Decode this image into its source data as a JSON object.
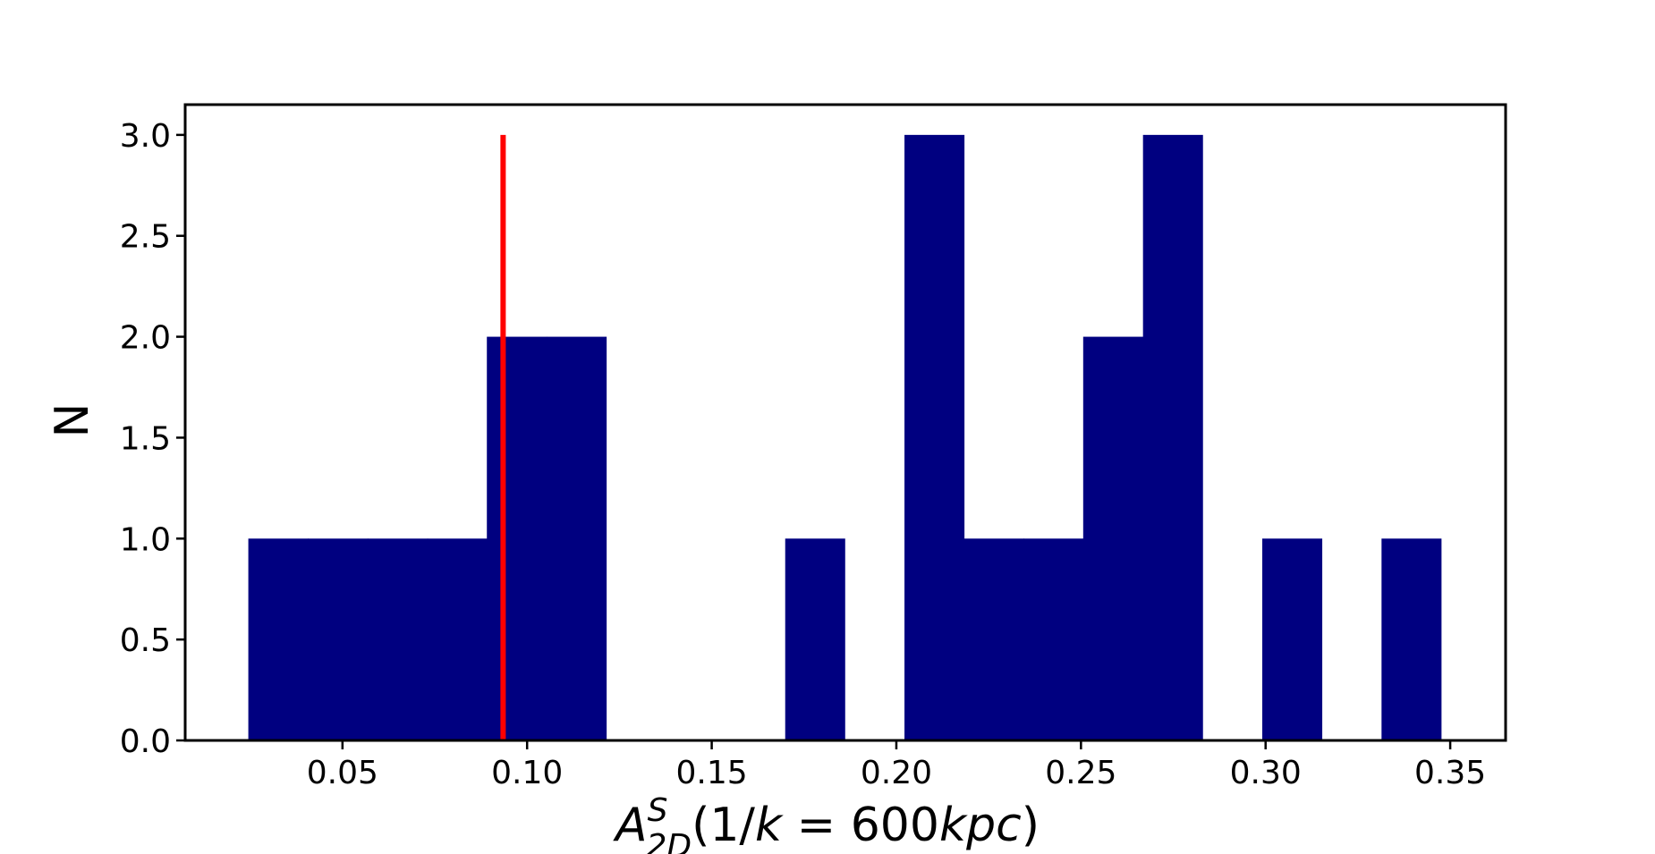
{
  "chart_data": {
    "type": "bar",
    "title": "",
    "xlabel": {
      "base": "A",
      "superscript": "S",
      "subscript": "2D",
      "suffix_open": "(1/",
      "suffix_k": "k",
      "suffix_eq": " = ",
      "suffix_num": "600",
      "suffix_unit": "kpc",
      "suffix_close": ")"
    },
    "ylabel": "N",
    "xlim": [
      0.0074,
      0.365
    ],
    "ylim": [
      0.0,
      3.15
    ],
    "bin_edges": [
      0.0245,
      0.0407,
      0.0568,
      0.073,
      0.0891,
      0.1053,
      0.1214,
      0.1376,
      0.1537,
      0.1699,
      0.186,
      0.2022,
      0.2183,
      0.2345,
      0.2506,
      0.2668,
      0.2829,
      0.2991,
      0.3152,
      0.3314,
      0.3475
    ],
    "values": [
      1,
      1,
      1,
      1,
      2,
      2,
      0,
      0,
      0,
      1,
      0,
      3,
      1,
      1,
      2,
      3,
      0,
      1,
      0,
      1
    ],
    "bar_color": "#000080",
    "xticks": [
      "0.05",
      "0.10",
      "0.15",
      "0.20",
      "0.25",
      "0.30",
      "0.35"
    ],
    "xtick_values": [
      0.05,
      0.1,
      0.15,
      0.2,
      0.25,
      0.3,
      0.35
    ],
    "yticks": [
      "0.0",
      "0.5",
      "1.0",
      "1.5",
      "2.0",
      "2.5",
      "3.0"
    ],
    "ytick_values": [
      0.0,
      0.5,
      1.0,
      1.5,
      2.0,
      2.5,
      3.0
    ],
    "reference_line": {
      "x": 0.0935,
      "y0": 0.0,
      "y1": 3.0,
      "color": "#ff0000"
    },
    "grid": false,
    "legend": "none"
  }
}
